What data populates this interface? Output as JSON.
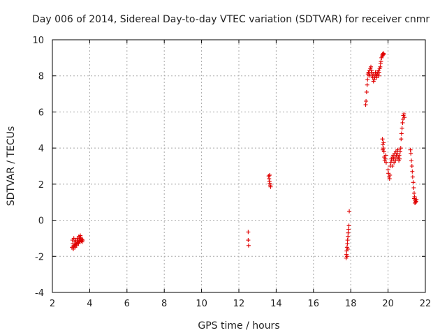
{
  "chart_data": {
    "type": "scatter",
    "title": "Day 006 of 2014, Sidereal Day-to-day VTEC variation (SDTVAR) for receiver cnmr",
    "xlabel": "GPS time / hours",
    "ylabel": "SDTVAR / TECUs",
    "xlim": [
      2,
      22
    ],
    "ylim": [
      -4,
      10
    ],
    "xticks": [
      2,
      4,
      6,
      8,
      10,
      12,
      14,
      16,
      18,
      20,
      22
    ],
    "yticks": [
      -4,
      -2,
      0,
      2,
      4,
      6,
      8,
      10
    ],
    "grid": true,
    "marker": "+",
    "color": "#e00000",
    "series": [
      {
        "name": "SDTVAR",
        "points": [
          [
            3.05,
            -1.5
          ],
          [
            3.08,
            -1.1
          ],
          [
            3.1,
            -1.3
          ],
          [
            3.12,
            -1.6
          ],
          [
            3.15,
            -1.0
          ],
          [
            3.18,
            -1.4
          ],
          [
            3.2,
            -1.2
          ],
          [
            3.22,
            -1.5
          ],
          [
            3.25,
            -1.1
          ],
          [
            3.28,
            -1.3
          ],
          [
            3.3,
            -1.4
          ],
          [
            3.33,
            -1.0
          ],
          [
            3.35,
            -1.2
          ],
          [
            3.38,
            -1.1
          ],
          [
            3.4,
            -1.3
          ],
          [
            3.42,
            -0.9
          ],
          [
            3.45,
            -1.0
          ],
          [
            3.48,
            -1.2
          ],
          [
            3.5,
            -1.1
          ],
          [
            3.52,
            -0.95
          ],
          [
            3.55,
            -1.15
          ],
          [
            3.58,
            -1.05
          ],
          [
            3.6,
            -1.2
          ],
          [
            3.62,
            -1.1
          ],
          [
            3.15,
            -1.45
          ],
          [
            3.25,
            -1.35
          ],
          [
            3.32,
            -1.25
          ],
          [
            3.44,
            -1.15
          ],
          [
            3.5,
            -0.85
          ],
          [
            12.5,
            -0.65
          ],
          [
            12.5,
            -1.1
          ],
          [
            12.52,
            -1.4
          ],
          [
            13.6,
            2.45
          ],
          [
            13.62,
            2.3
          ],
          [
            13.64,
            2.15
          ],
          [
            13.66,
            2.05
          ],
          [
            13.68,
            1.95
          ],
          [
            13.7,
            1.85
          ],
          [
            13.65,
            2.5
          ],
          [
            17.75,
            -2.1
          ],
          [
            17.77,
            -1.9
          ],
          [
            17.78,
            -1.7
          ],
          [
            17.8,
            -1.5
          ],
          [
            17.82,
            -1.3
          ],
          [
            17.83,
            -1.1
          ],
          [
            17.85,
            -0.9
          ],
          [
            17.86,
            -0.7
          ],
          [
            17.88,
            -0.5
          ],
          [
            17.9,
            -0.3
          ],
          [
            17.92,
            0.5
          ],
          [
            17.8,
            -2.0
          ],
          [
            17.84,
            -1.6
          ],
          [
            18.8,
            6.4
          ],
          [
            18.82,
            6.6
          ],
          [
            18.85,
            7.1
          ],
          [
            18.88,
            7.5
          ],
          [
            18.9,
            7.8
          ],
          [
            18.92,
            8.1
          ],
          [
            18.95,
            8.2
          ],
          [
            18.98,
            8.0
          ],
          [
            19.0,
            8.3
          ],
          [
            19.02,
            8.1
          ],
          [
            19.05,
            8.4
          ],
          [
            19.08,
            8.5
          ],
          [
            19.1,
            8.2
          ],
          [
            19.12,
            8.3
          ],
          [
            19.15,
            8.0
          ],
          [
            19.18,
            7.9
          ],
          [
            19.2,
            8.1
          ],
          [
            19.22,
            7.7
          ],
          [
            19.25,
            7.8
          ],
          [
            19.28,
            7.9
          ],
          [
            19.3,
            8.0
          ],
          [
            19.32,
            8.2
          ],
          [
            19.35,
            8.1
          ],
          [
            19.38,
            7.9
          ],
          [
            19.4,
            8.0
          ],
          [
            19.42,
            8.2
          ],
          [
            19.45,
            8.1
          ],
          [
            19.48,
            8.3
          ],
          [
            19.5,
            8.0
          ],
          [
            19.52,
            8.2
          ],
          [
            19.55,
            8.4
          ],
          [
            19.58,
            8.5
          ],
          [
            19.6,
            8.7
          ],
          [
            19.62,
            8.8
          ],
          [
            19.65,
            9.0
          ],
          [
            19.68,
            9.1
          ],
          [
            19.7,
            9.2
          ],
          [
            19.72,
            9.15
          ],
          [
            19.75,
            9.25
          ],
          [
            19.78,
            9.2
          ],
          [
            19.7,
            4.5
          ],
          [
            19.72,
            4.2
          ],
          [
            19.75,
            4.0
          ],
          [
            19.78,
            3.8
          ],
          [
            19.8,
            3.5
          ],
          [
            19.82,
            3.3
          ],
          [
            19.85,
            3.4
          ],
          [
            19.88,
            3.6
          ],
          [
            19.9,
            3.2
          ],
          [
            19.72,
            3.9
          ],
          [
            19.76,
            4.3
          ],
          [
            20.0,
            2.8
          ],
          [
            20.02,
            2.6
          ],
          [
            20.05,
            2.4
          ],
          [
            20.08,
            2.3
          ],
          [
            20.1,
            2.5
          ],
          [
            20.12,
            3.0
          ],
          [
            20.15,
            3.2
          ],
          [
            20.18,
            3.4
          ],
          [
            20.2,
            3.3
          ],
          [
            20.22,
            3.0
          ],
          [
            20.25,
            3.5
          ],
          [
            20.28,
            3.6
          ],
          [
            20.3,
            3.4
          ],
          [
            20.32,
            3.2
          ],
          [
            20.35,
            3.7
          ],
          [
            20.38,
            3.5
          ],
          [
            20.4,
            3.3
          ],
          [
            20.42,
            3.8
          ],
          [
            20.45,
            3.6
          ],
          [
            20.48,
            3.4
          ],
          [
            20.5,
            3.7
          ],
          [
            20.52,
            3.9
          ],
          [
            20.55,
            3.5
          ],
          [
            20.58,
            3.3
          ],
          [
            20.6,
            3.6
          ],
          [
            20.62,
            3.4
          ],
          [
            20.65,
            3.8
          ],
          [
            20.68,
            4.0
          ],
          [
            20.7,
            4.5
          ],
          [
            20.72,
            4.8
          ],
          [
            20.75,
            5.1
          ],
          [
            20.78,
            5.4
          ],
          [
            20.8,
            5.6
          ],
          [
            20.82,
            5.8
          ],
          [
            20.85,
            5.9
          ],
          [
            20.88,
            5.7
          ],
          [
            21.2,
            3.9
          ],
          [
            21.22,
            3.7
          ],
          [
            21.25,
            3.3
          ],
          [
            21.28,
            3.0
          ],
          [
            21.3,
            2.7
          ],
          [
            21.32,
            2.4
          ],
          [
            21.35,
            2.1
          ],
          [
            21.38,
            1.8
          ],
          [
            21.4,
            1.5
          ],
          [
            21.42,
            1.3
          ],
          [
            21.45,
            1.1
          ],
          [
            21.48,
            1.0
          ],
          [
            21.5,
            1.05
          ],
          [
            21.52,
            1.15
          ],
          [
            21.4,
            1.2
          ],
          [
            21.44,
            0.95
          ]
        ]
      }
    ]
  }
}
